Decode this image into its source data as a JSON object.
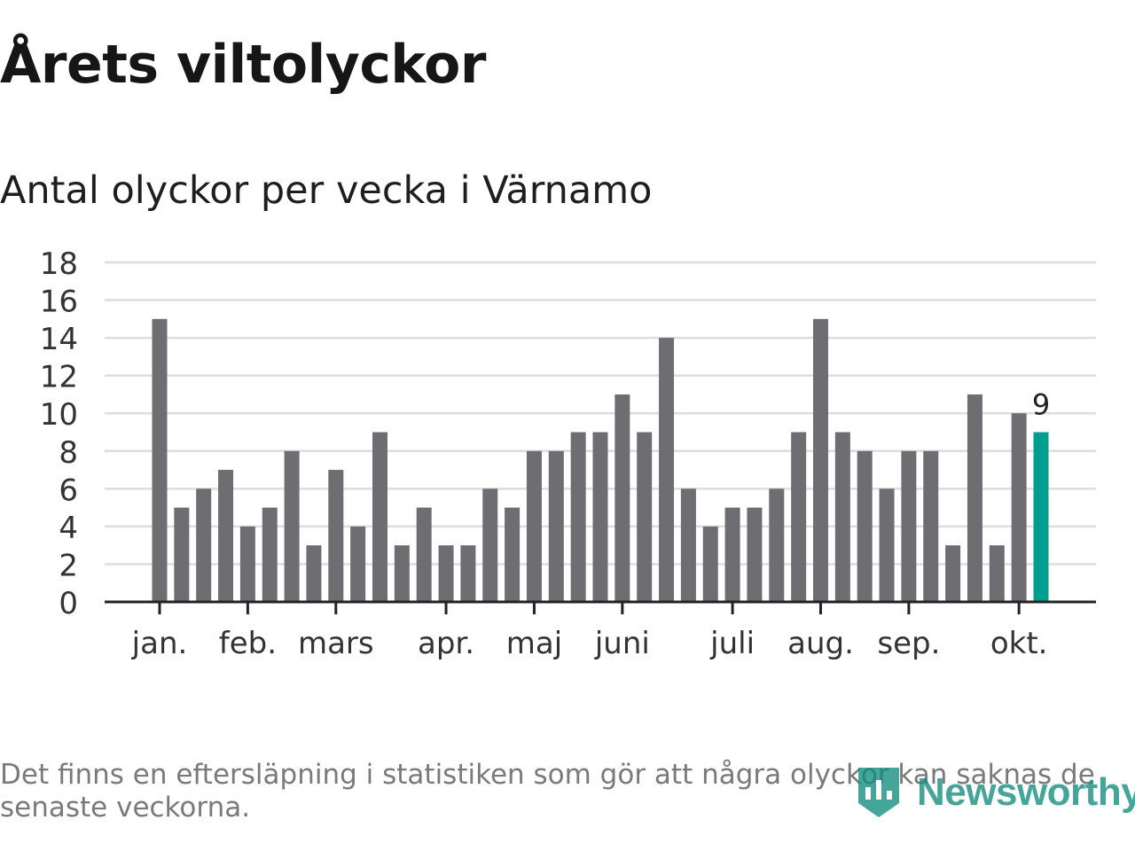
{
  "title": "Årets viltolyckor",
  "subtitle": "Antal olyckor per vecka i Värnamo",
  "footnote": "Det finns en eftersläpning i statistiken som gör att några olyckor kan saknas de senaste veckorna.",
  "logo_text": "Newsworthy",
  "colors": {
    "bar": "#6e6e72",
    "highlight": "#009e8e",
    "grid": "#dddddd",
    "axis": "#222222",
    "text": "#333333",
    "logo": "#128c7d"
  },
  "chart_data": {
    "type": "bar",
    "ylim": [
      0,
      18
    ],
    "yticks": [
      0,
      2,
      4,
      6,
      8,
      10,
      12,
      14,
      16,
      18
    ],
    "grid": true,
    "xlabel": "",
    "ylabel": "",
    "month_labels": [
      {
        "label": "jan.",
        "week_index": 0
      },
      {
        "label": "feb.",
        "week_index": 4
      },
      {
        "label": "mars",
        "week_index": 8
      },
      {
        "label": "apr.",
        "week_index": 13
      },
      {
        "label": "maj",
        "week_index": 17
      },
      {
        "label": "juni",
        "week_index": 21
      },
      {
        "label": "juli",
        "week_index": 26
      },
      {
        "label": "aug.",
        "week_index": 30
      },
      {
        "label": "sep.",
        "week_index": 34
      },
      {
        "label": "okt.",
        "week_index": 39
      }
    ],
    "values": [
      15,
      5,
      6,
      7,
      4,
      5,
      8,
      3,
      7,
      4,
      9,
      3,
      5,
      3,
      3,
      6,
      5,
      8,
      8,
      9,
      9,
      11,
      9,
      14,
      6,
      4,
      5,
      5,
      6,
      9,
      15,
      9,
      8,
      6,
      8,
      8,
      3,
      11,
      3,
      10,
      9
    ],
    "highlight_index": 40,
    "highlight_label": "9"
  }
}
